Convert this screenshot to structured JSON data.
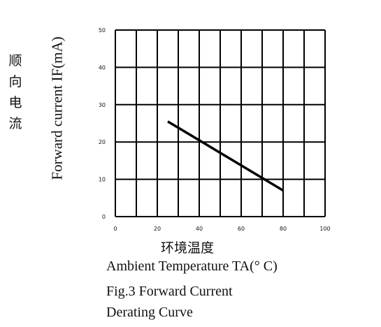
{
  "chart_data": {
    "type": "line",
    "ylabel_cn": [
      "顺",
      "向",
      "电",
      "流"
    ],
    "ylabel": "Forward current IF(mA)",
    "xlabel_cn": "环境温度",
    "xlabel": "Ambient Temperature TA(° C)",
    "caption_line1": "Fig.3 Forward Current",
    "caption_line2": "Derating Curve",
    "xlim": [
      0,
      100
    ],
    "ylim": [
      0,
      50
    ],
    "x_ticks": [
      "0",
      "20",
      "40",
      "60",
      "80",
      "100"
    ],
    "y_ticks": [
      "0",
      "10",
      "20",
      "30",
      "40",
      "50"
    ],
    "grid": true,
    "series": [
      {
        "x": [
          25,
          80
        ],
        "y": [
          25.5,
          7
        ]
      }
    ],
    "colors": {
      "line": "#000000",
      "grid": "#000000"
    }
  }
}
